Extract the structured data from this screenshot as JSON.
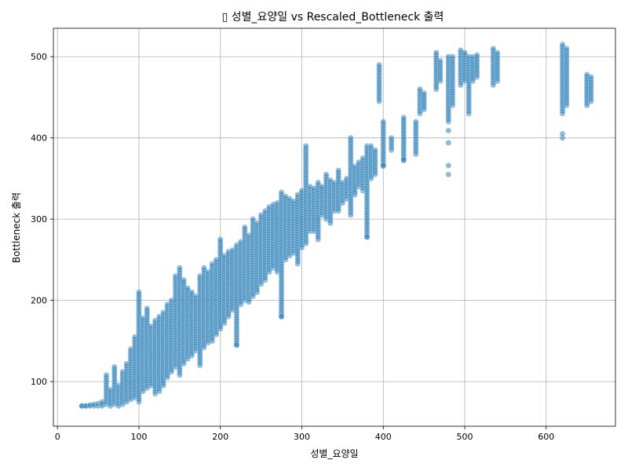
{
  "chart_data": {
    "type": "scatter",
    "title": "▯ 성별_요양일 vs Rescaled_Bottleneck 출력",
    "xlabel": "성별_요양일",
    "ylabel": "Bottleneck 출력",
    "xlim": [
      -5,
      685
    ],
    "ylim": [
      45,
      535
    ],
    "xticks": [
      0,
      100,
      200,
      300,
      400,
      500,
      600
    ],
    "yticks": [
      100,
      200,
      300,
      400,
      500
    ],
    "grid": true,
    "marker_color": "#1f77b4",
    "marker_edge_color": "#ffffff",
    "marker_alpha": 0.5,
    "columns": [
      {
        "x": 30,
        "y": [
          70,
          70
        ]
      },
      {
        "x": 35,
        "y": [
          70,
          70
        ]
      },
      {
        "x": 40,
        "y": [
          70,
          71
        ]
      },
      {
        "x": 45,
        "y": [
          70,
          72
        ]
      },
      {
        "x": 50,
        "y": [
          70,
          73
        ]
      },
      {
        "x": 55,
        "y": [
          70,
          75
        ]
      },
      {
        "x": 60,
        "y": [
          72,
          108
        ]
      },
      {
        "x": 65,
        "y": [
          70,
          90
        ]
      },
      {
        "x": 70,
        "y": [
          72,
          118
        ]
      },
      {
        "x": 75,
        "y": [
          70,
          95
        ]
      },
      {
        "x": 80,
        "y": [
          72,
          112
        ]
      },
      {
        "x": 85,
        "y": [
          75,
          122
        ]
      },
      {
        "x": 90,
        "y": [
          78,
          140
        ]
      },
      {
        "x": 95,
        "y": [
          80,
          155
        ]
      },
      {
        "x": 100,
        "y": [
          75,
          210
        ]
      },
      {
        "x": 105,
        "y": [
          88,
          178
        ]
      },
      {
        "x": 110,
        "y": [
          92,
          190
        ]
      },
      {
        "x": 115,
        "y": [
          95,
          168
        ]
      },
      {
        "x": 120,
        "y": [
          85,
          175
        ]
      },
      {
        "x": 125,
        "y": [
          88,
          180
        ]
      },
      {
        "x": 130,
        "y": [
          95,
          185
        ]
      },
      {
        "x": 135,
        "y": [
          105,
          195
        ]
      },
      {
        "x": 140,
        "y": [
          112,
          200
        ]
      },
      {
        "x": 145,
        "y": [
          118,
          230
        ]
      },
      {
        "x": 150,
        "y": [
          108,
          240
        ]
      },
      {
        "x": 155,
        "y": [
          122,
          225
        ]
      },
      {
        "x": 160,
        "y": [
          128,
          215
        ]
      },
      {
        "x": 165,
        "y": [
          132,
          210
        ]
      },
      {
        "x": 170,
        "y": [
          138,
          205
        ]
      },
      {
        "x": 175,
        "y": [
          120,
          230
        ]
      },
      {
        "x": 180,
        "y": [
          142,
          240
        ]
      },
      {
        "x": 185,
        "y": [
          148,
          235
        ]
      },
      {
        "x": 190,
        "y": [
          150,
          245
        ]
      },
      {
        "x": 195,
        "y": [
          158,
          250
        ]
      },
      {
        "x": 200,
        "y": [
          165,
          275
        ]
      },
      {
        "x": 205,
        "y": [
          172,
          255
        ]
      },
      {
        "x": 210,
        "y": [
          180,
          260
        ]
      },
      {
        "x": 215,
        "y": [
          188,
          262
        ]
      },
      {
        "x": 220,
        "y": [
          145,
          268
        ]
      },
      {
        "x": 225,
        "y": [
          195,
          272
        ]
      },
      {
        "x": 230,
        "y": [
          200,
          290
        ]
      },
      {
        "x": 235,
        "y": [
          198,
          280
        ]
      },
      {
        "x": 240,
        "y": [
          205,
          300
        ]
      },
      {
        "x": 245,
        "y": [
          210,
          295
        ]
      },
      {
        "x": 250,
        "y": [
          220,
          305
        ]
      },
      {
        "x": 255,
        "y": [
          225,
          310
        ]
      },
      {
        "x": 260,
        "y": [
          235,
          315
        ]
      },
      {
        "x": 265,
        "y": [
          240,
          318
        ]
      },
      {
        "x": 270,
        "y": [
          235,
          320
        ]
      },
      {
        "x": 275,
        "y": [
          180,
          333
        ]
      },
      {
        "x": 280,
        "y": [
          250,
          328
        ]
      },
      {
        "x": 285,
        "y": [
          255,
          325
        ]
      },
      {
        "x": 290,
        "y": [
          258,
          322
        ]
      },
      {
        "x": 295,
        "y": [
          245,
          330
        ]
      },
      {
        "x": 300,
        "y": [
          265,
          335
        ]
      },
      {
        "x": 305,
        "y": [
          270,
          390
        ]
      },
      {
        "x": 310,
        "y": [
          285,
          340
        ]
      },
      {
        "x": 315,
        "y": [
          285,
          338
        ]
      },
      {
        "x": 320,
        "y": [
          275,
          345
        ]
      },
      {
        "x": 325,
        "y": [
          305,
          340
        ]
      },
      {
        "x": 330,
        "y": [
          300,
          355
        ]
      },
      {
        "x": 335,
        "y": [
          295,
          348
        ]
      },
      {
        "x": 340,
        "y": [
          310,
          345
        ]
      },
      {
        "x": 345,
        "y": [
          310,
          360
        ]
      },
      {
        "x": 350,
        "y": [
          320,
          345
        ]
      },
      {
        "x": 355,
        "y": [
          325,
          350
        ]
      },
      {
        "x": 360,
        "y": [
          305,
          400
        ]
      },
      {
        "x": 365,
        "y": [
          330,
          365
        ]
      },
      {
        "x": 370,
        "y": [
          340,
          370
        ]
      },
      {
        "x": 375,
        "y": [
          335,
          375
        ]
      },
      {
        "x": 380,
        "y": [
          278,
          390
        ]
      },
      {
        "x": 385,
        "y": [
          350,
          390
        ]
      },
      {
        "x": 390,
        "y": [
          355,
          385
        ]
      },
      {
        "x": 395,
        "y": [
          445,
          490
        ]
      },
      {
        "x": 400,
        "y": [
          365,
          420
        ]
      },
      {
        "x": 410,
        "y": [
          385,
          400
        ]
      },
      {
        "x": 425,
        "y": [
          372,
          425
        ]
      },
      {
        "x": 440,
        "y": [
          380,
          420
        ]
      },
      {
        "x": 445,
        "y": [
          430,
          460
        ]
      },
      {
        "x": 450,
        "y": [
          435,
          455
        ]
      },
      {
        "x": 465,
        "y": [
          460,
          505
        ]
      },
      {
        "x": 470,
        "y": [
          470,
          495
        ]
      },
      {
        "x": 480,
        "y": [
          420,
          500
        ]
      },
      {
        "x": 485,
        "y": [
          440,
          500
        ]
      },
      {
        "x": 495,
        "y": [
          465,
          508
        ]
      },
      {
        "x": 500,
        "y": [
          470,
          505
        ]
      },
      {
        "x": 505,
        "y": [
          430,
          500
        ]
      },
      {
        "x": 510,
        "y": [
          470,
          500
        ]
      },
      {
        "x": 515,
        "y": [
          475,
          502
        ]
      },
      {
        "x": 535,
        "y": [
          465,
          510
        ]
      },
      {
        "x": 540,
        "y": [
          470,
          505
        ]
      },
      {
        "x": 620,
        "y": [
          430,
          515
        ]
      },
      {
        "x": 625,
        "y": [
          440,
          510
        ]
      },
      {
        "x": 650,
        "y": [
          440,
          478
        ]
      },
      {
        "x": 655,
        "y": [
          445,
          475
        ]
      }
    ],
    "outliers": [
      {
        "x": 480,
        "y": 355
      },
      {
        "x": 480,
        "y": 366
      },
      {
        "x": 480,
        "y": 394
      },
      {
        "x": 480,
        "y": 409
      },
      {
        "x": 400,
        "y": 366
      },
      {
        "x": 425,
        "y": 373
      },
      {
        "x": 620,
        "y": 400
      },
      {
        "x": 620,
        "y": 405
      },
      {
        "x": 380,
        "y": 278
      },
      {
        "x": 220,
        "y": 145
      },
      {
        "x": 275,
        "y": 180
      }
    ]
  }
}
